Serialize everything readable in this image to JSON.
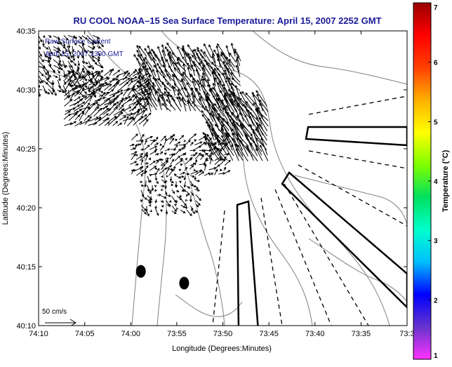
{
  "title": "RU COOL  NOAA–15  Sea Surface Temperature:  April 15, 2007 2252 GMT",
  "overlay_lines": [
    "Raw Surface Current",
    "April 15, 2007 2300 GMT"
  ],
  "scale_label": "50 cm/s",
  "colors": {
    "title": "#1a1a99",
    "overlay": "#1a1a99",
    "contour": "#808080",
    "vector": "#000000"
  },
  "chart_data": {
    "type": "map",
    "title": "RU COOL  NOAA–15  Sea Surface Temperature:  April 15, 2007 2252 GMT",
    "xlabel": "Longitude (Degrees:Minutes)",
    "ylabel": "Latitude (Degrees:Minutes)",
    "xlim": [
      -74.1667,
      -73.5
    ],
    "ylim": [
      40.1667,
      40.5833
    ],
    "xticks": [
      {
        "v": -74.1667,
        "label": "74:10"
      },
      {
        "v": -74.0833,
        "label": "74:05"
      },
      {
        "v": -74.0,
        "label": "74:00"
      },
      {
        "v": -73.9167,
        "label": "73:55"
      },
      {
        "v": -73.8333,
        "label": "73:50"
      },
      {
        "v": -73.75,
        "label": "73:45"
      },
      {
        "v": -73.6667,
        "label": "73:40"
      },
      {
        "v": -73.5833,
        "label": "73:35"
      },
      {
        "v": -73.5,
        "label": "73:3"
      }
    ],
    "yticks": [
      {
        "v": 40.1667,
        "label": "40:10"
      },
      {
        "v": 40.25,
        "label": "40:15"
      },
      {
        "v": 40.3333,
        "label": "40:20"
      },
      {
        "v": 40.4167,
        "label": "40:25"
      },
      {
        "v": 40.5,
        "label": "40:30"
      },
      {
        "v": 40.5833,
        "label": "40:35"
      }
    ],
    "colorbar": {
      "label": "Temperature (°C)",
      "min": 1,
      "max": 7,
      "ticks": [
        "1",
        "2",
        "3",
        "4",
        "5",
        "6",
        "7"
      ],
      "stops": [
        "#ff33ff",
        "#6633cc",
        "#0000ff",
        "#00bfff",
        "#00ffcc",
        "#00e060",
        "#7fff00",
        "#ffff00",
        "#ffb000",
        "#ff4000",
        "#ff0000",
        "#990000"
      ]
    },
    "scale_vector": {
      "label": "50 cm/s",
      "magnitude_cm_s": 50
    },
    "markers": [
      {
        "lon": -73.9817,
        "lat": 40.2433
      },
      {
        "lon": -73.9033,
        "lat": 40.2267
      }
    ],
    "current_regions": [
      {
        "lon": [
          -74.1667,
          -74.06
        ],
        "lat": [
          40.5,
          40.583
        ],
        "u": 8,
        "v": -10
      },
      {
        "lon": [
          -74.12,
          -73.97
        ],
        "lat": [
          40.45,
          40.52
        ],
        "u": 15,
        "v": 12
      },
      {
        "lon": [
          -73.98,
          -73.8
        ],
        "lat": [
          40.47,
          40.55
        ],
        "u": -12,
        "v": 22
      },
      {
        "lon": [
          -73.85,
          -73.75
        ],
        "lat": [
          40.4,
          40.48
        ],
        "u": -18,
        "v": 30
      },
      {
        "lon": [
          -74.0,
          -73.83
        ],
        "lat": [
          40.38,
          40.43
        ],
        "u": 8,
        "v": 6
      },
      {
        "lon": [
          -73.98,
          -73.88
        ],
        "lat": [
          40.33,
          40.38
        ],
        "u": 4,
        "v": -6
      }
    ]
  }
}
